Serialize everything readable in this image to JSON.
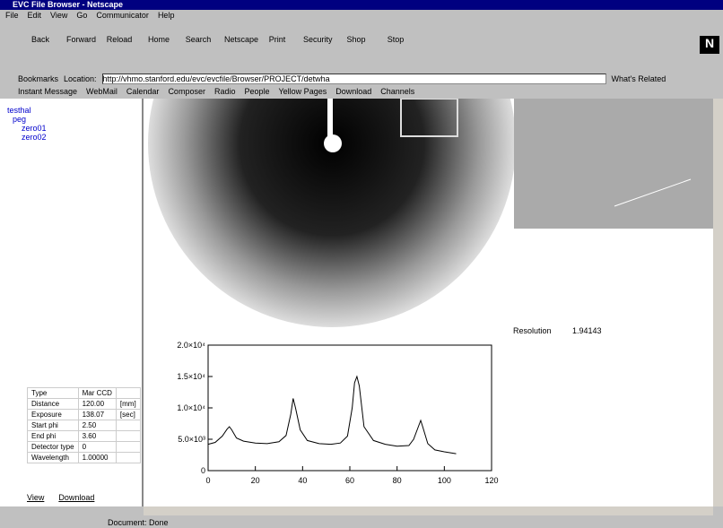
{
  "window": {
    "title": "EVC File Browser - Netscape"
  },
  "menu": [
    "File",
    "Edit",
    "View",
    "Go",
    "Communicator",
    "Help"
  ],
  "toolbar": [
    "Back",
    "Forward",
    "Reload",
    "Home",
    "Search",
    "Netscape",
    "Print",
    "Security",
    "Shop",
    "Stop"
  ],
  "location_bar": {
    "bookmarks": "Bookmarks",
    "label": "Location:",
    "url": "http://vhmo.stanford.edu/evc/evcfile/Browser/PROJECT/detwha",
    "related": "What's Related"
  },
  "personal_toolbar": [
    "Instant Message",
    "WebMail",
    "Calendar",
    "Composer",
    "Radio",
    "People",
    "Yellow Pages",
    "Download",
    "Channels"
  ],
  "tree": [
    "testhal",
    "peg",
    "zero01",
    "zero02"
  ],
  "info": [
    {
      "label": "Type",
      "value": "Mar CCD"
    },
    {
      "label": "Distance",
      "value": "120.00",
      "unit": "[mm]"
    },
    {
      "label": "Exposure",
      "value": "138.07",
      "unit": "[sec]"
    },
    {
      "label": "Start phi",
      "value": "2.50"
    },
    {
      "label": "End phi",
      "value": "3.60"
    },
    {
      "label": "Detector type",
      "value": "0"
    },
    {
      "label": "Wavelength",
      "value": "1.00000"
    }
  ],
  "buttons": [
    "View",
    "Download"
  ],
  "resolution": {
    "label": "Resolution",
    "value": "1.94143"
  },
  "status": "Document: Done",
  "chart_data": {
    "type": "line",
    "x": [
      0,
      3,
      6,
      8,
      9,
      10,
      12,
      15,
      20,
      25,
      30,
      33,
      35,
      36,
      37,
      39,
      42,
      47,
      52,
      56,
      59,
      61,
      62,
      63,
      64,
      66,
      70,
      75,
      80,
      85,
      87,
      89,
      90,
      91,
      93,
      96,
      100,
      105
    ],
    "series": [
      {
        "color": "#000000",
        "values": [
          4200,
          4500,
          5500,
          6600,
          7000,
          6500,
          5200,
          4700,
          4400,
          4300,
          4600,
          5600,
          9000,
          11500,
          10000,
          6500,
          4800,
          4300,
          4200,
          4400,
          5500,
          10000,
          14000,
          15000,
          13500,
          7000,
          4800,
          4200,
          3900,
          4000,
          5000,
          7000,
          8000,
          6800,
          4300,
          3300,
          3000,
          2700
        ]
      }
    ],
    "xlim": [
      0,
      120
    ],
    "xticks": [
      0,
      20,
      40,
      60,
      80,
      100,
      120
    ],
    "ylim": [
      0,
      20000
    ],
    "yticks": [
      0,
      {
        "value": 5000,
        "label": "5.0×10³"
      },
      {
        "value": 10000,
        "label": "1.0×10⁴"
      },
      {
        "value": 15000,
        "label": "1.5×10⁴"
      },
      {
        "value": 20000,
        "label": "2.0×10⁴"
      }
    ]
  }
}
